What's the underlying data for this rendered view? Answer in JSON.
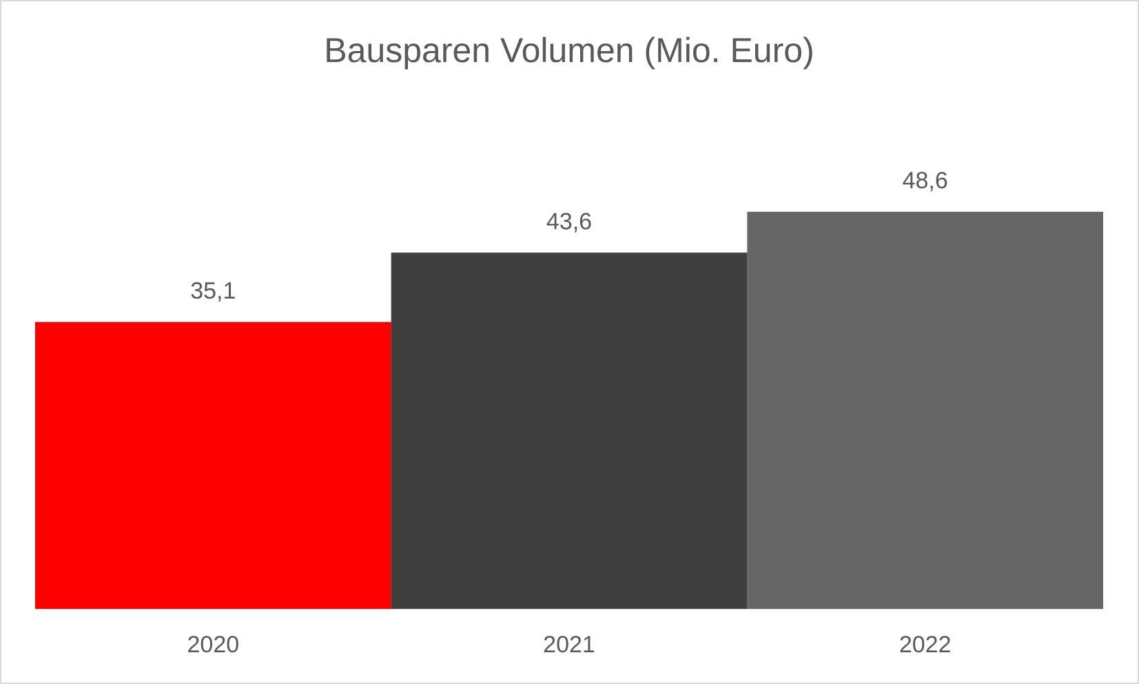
{
  "chart_data": {
    "type": "bar",
    "title": "Bausparen Volumen (Mio. Euro)",
    "categories": [
      "2020",
      "2021",
      "2022"
    ],
    "values": [
      35.1,
      43.6,
      48.6
    ],
    "value_labels": [
      "35,1",
      "43,6",
      "48,6"
    ],
    "colors": [
      "#ff0000",
      "#404040",
      "#666666"
    ],
    "ylim": [
      0,
      60
    ]
  }
}
